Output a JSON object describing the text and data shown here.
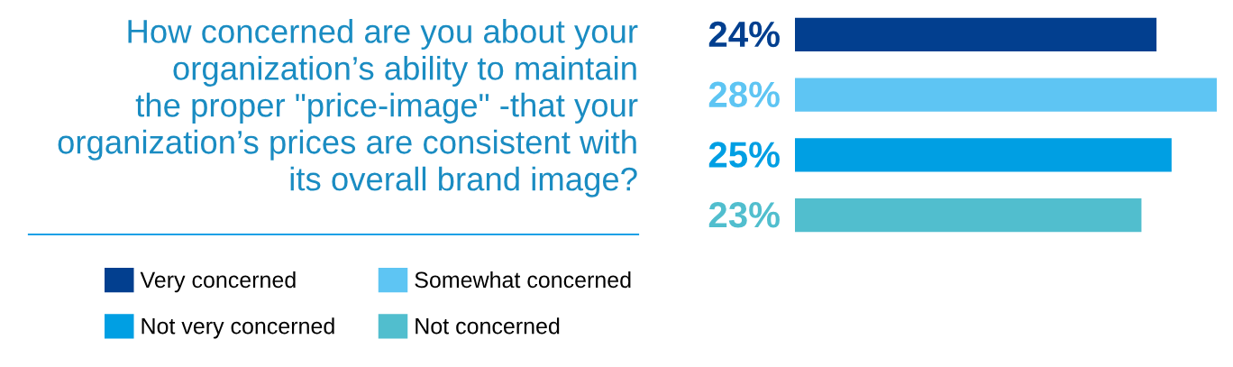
{
  "chart_data": {
    "type": "bar",
    "orientation": "horizontal",
    "stacked": true,
    "title": "How concerned are you about your\norganization’s ability to maintain\nthe proper \"price-image\" -that your\norganization’s prices are consistent with\nits overall brand image?",
    "categories": [
      null,
      null,
      null,
      null
    ],
    "series": [
      {
        "name": "Very concerned",
        "color": "#023f8f",
        "values": [
          24,
          null,
          null,
          null
        ],
        "value_labels": [
          "24%",
          null,
          null,
          null
        ]
      },
      {
        "name": "Somewhat concerned",
        "color": "#5ec5f3",
        "values": [
          null,
          28,
          null,
          null
        ],
        "value_labels": [
          null,
          "28%",
          null,
          null
        ]
      },
      {
        "name": "Not very concerned",
        "color": "#009fe3",
        "values": [
          null,
          null,
          25,
          null
        ],
        "value_labels": [
          null,
          null,
          "25%",
          null
        ]
      },
      {
        "name": "Not concerned",
        "color": "#51bece",
        "values": [
          null,
          null,
          null,
          23
        ],
        "value_labels": [
          null,
          null,
          null,
          "23%"
        ]
      }
    ],
    "legend": "bottom left",
    "tick_labels": false
  }
}
